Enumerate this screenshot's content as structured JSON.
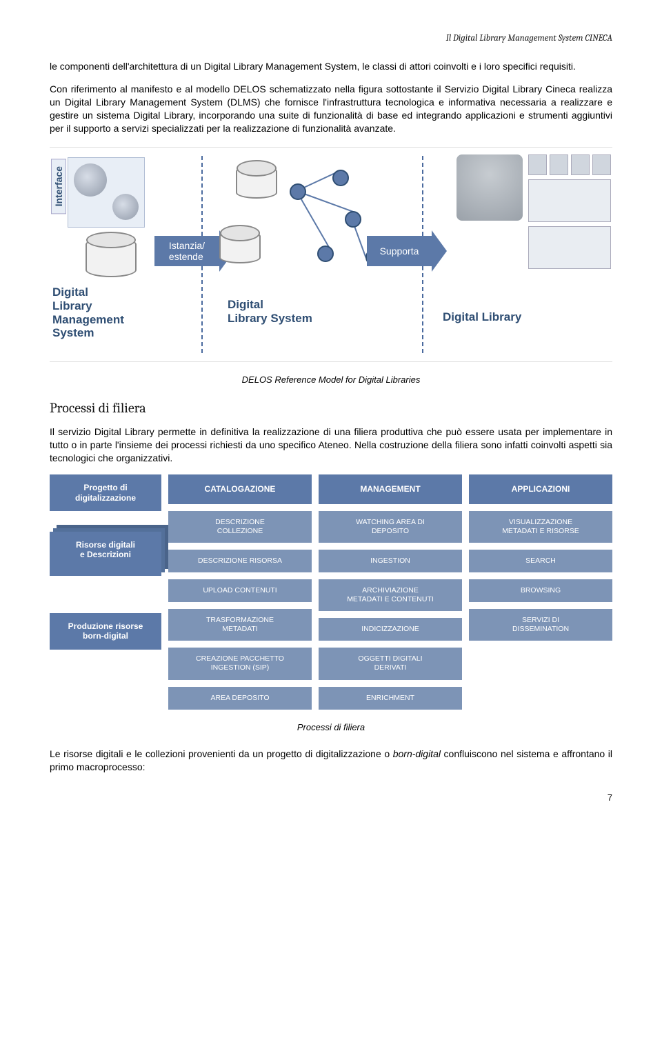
{
  "running_header": "Il Digital Library Management System CINECA",
  "para1": "le componenti dell'architettura di un Digital Library Management System, le classi di attori coinvolti e i loro specifici requisiti.",
  "para2": "Con riferimento al manifesto e al modello DELOS schematizzato nella figura sottostante il Servizio Digital Library Cineca realizza un Digital Library Management System (DLMS) che fornisce l'infrastruttura tecnologica e informativa necessaria a realizzare e gestire un sistema Digital Library, incorporando una suite di funzionalità di base ed integrando applicazioni e strumenti aggiuntivi per il supporto a servizi specializzati per la realizzazione di funzionalità avanzate.",
  "diagram1": {
    "interface_label": "Interface",
    "col1_label": "Digital\nLibrary\nManagement\nSystem",
    "col2_label": "Digital\nLibrary System",
    "col3_label": "Digital Library",
    "arrow1": "Istanzia/\nestende",
    "arrow2": "Supporta",
    "divider_color": "#4a6a9e",
    "label_color": "#2f4e73",
    "arrow_color": "#5c79a8"
  },
  "caption1": "DELOS Reference Model for Digital Libraries",
  "section_title": "Processi di filiera",
  "para3": "Il servizio Digital Library permette in definitiva la realizzazione di una filiera produttiva che può essere usata per implementare in tutto o in parte l'insieme dei processi richiesti da uno specifico Ateneo. Nella costruzione della filiera sono infatti coinvolti aspetti sia tecnologici che organizzativi.",
  "diagram2": {
    "header_color": "#5c79a8",
    "box_color": "#7d94b6",
    "left_items": [
      "Progetto di\ndigitalizzazione",
      "Risorse digitali\ne Descrizioni",
      "Produzione risorse\nborn-digital"
    ],
    "columns": [
      {
        "header": "CATALOGAZIONE",
        "boxes": [
          "DESCRIZIONE\nCOLLEZIONE",
          "DESCRIZIONE RISORSA",
          "UPLOAD CONTENUTI",
          "TRASFORMAZIONE\nMETADATI",
          "CREAZIONE PACCHETTO\nINGESTION (SIP)",
          "AREA DEPOSITO"
        ]
      },
      {
        "header": "MANAGEMENT",
        "boxes": [
          "WATCHING AREA DI\nDEPOSITO",
          "INGESTION",
          "ARCHIVIAZIONE\nMETADATI E CONTENUTI",
          "INDICIZZAZIONE",
          "OGGETTI DIGITALI\nDERIVATI",
          "ENRICHMENT"
        ]
      },
      {
        "header": "APPLICAZIONI",
        "boxes": [
          "VISUALIZZAZIONE\nMETADATI E RISORSE",
          "SEARCH",
          "BROWSING",
          "SERVIZI DI\nDISSEMINATION"
        ]
      }
    ]
  },
  "caption2": "Processi di filiera",
  "para4": "Le risorse digitali e le collezioni provenienti da un progetto di digitalizzazione o born-digital confluiscono nel sistema e affrontano il primo macroprocesso:",
  "page_number": "7"
}
